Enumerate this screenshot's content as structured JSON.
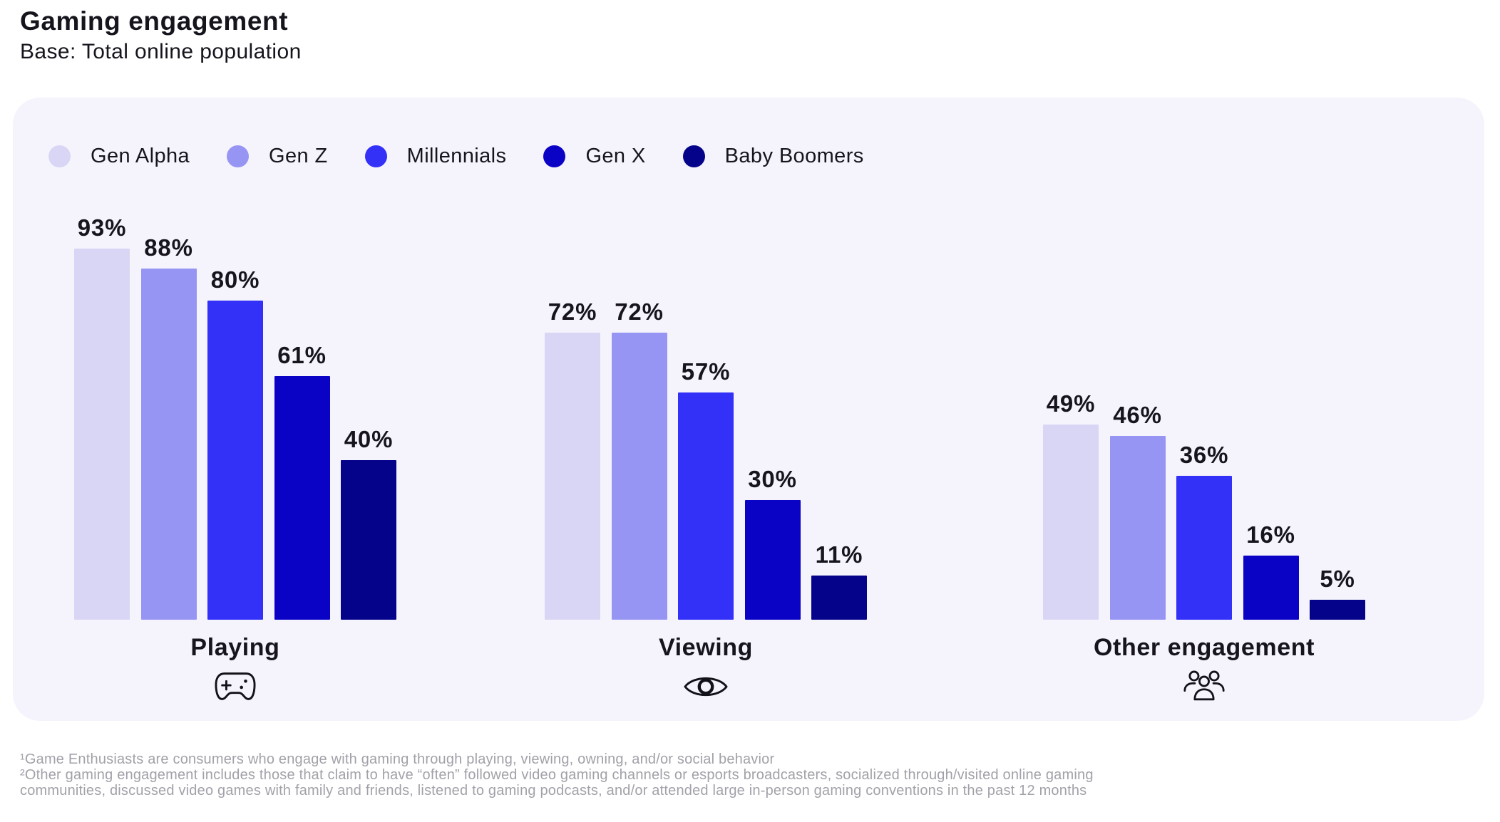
{
  "header": {
    "title": "Gaming engagement",
    "subtitle": "Base: Total online population"
  },
  "chart_data": {
    "type": "bar",
    "title": "Gaming engagement",
    "subtitle": "Base: Total online population",
    "categories": [
      "Playing",
      "Viewing",
      "Other engagement"
    ],
    "category_icons": [
      "gamepad-icon",
      "eye-icon",
      "people-group-icon"
    ],
    "series": [
      {
        "name": "Gen Alpha",
        "color": "#d8d6f4",
        "values": [
          93,
          72,
          49
        ]
      },
      {
        "name": "Gen Z",
        "color": "#9795f4",
        "values": [
          88,
          72,
          46
        ]
      },
      {
        "name": "Millennials",
        "color": "#3330f7",
        "values": [
          80,
          57,
          36
        ]
      },
      {
        "name": "Gen X",
        "color": "#0a03c6",
        "values": [
          61,
          30,
          16
        ]
      },
      {
        "name": "Baby Boomers",
        "color": "#050389",
        "values": [
          40,
          11,
          5
        ]
      }
    ],
    "value_suffix": "%",
    "ylim": [
      0,
      100
    ],
    "grid": false,
    "value_labels": true,
    "legend_position": "top-left"
  },
  "footnotes": [
    "¹Game Enthusiasts are consumers who engage with gaming through playing, viewing, owning, and/or social behavior",
    "²Other gaming engagement includes those that claim to have “often” followed video gaming channels or esports broadcasters, socialized through/visited online gaming communities, discussed video games with family and friends, listened to gaming podcasts, and/or attended large in-person gaming conventions in the past 12 months"
  ]
}
